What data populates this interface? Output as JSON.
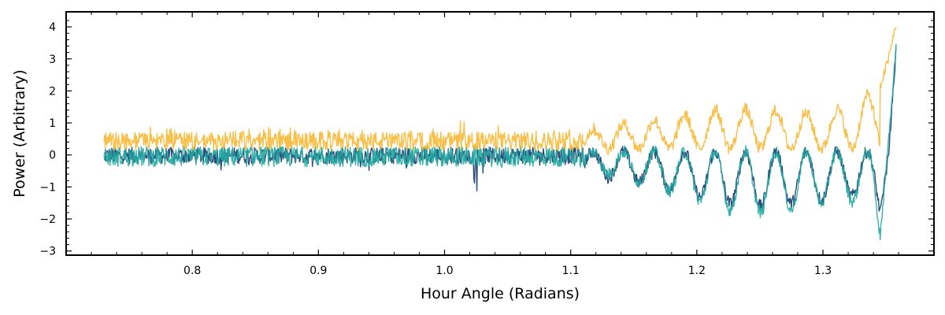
{
  "chart_data": {
    "type": "line",
    "title": "",
    "xlabel": "Hour Angle (Radians)",
    "ylabel": "Power (Arbitrary)",
    "xlim": [
      0.7,
      1.388
    ],
    "ylim": [
      -3.13,
      4.47
    ],
    "x_ticks": [
      0.8,
      0.9,
      1.0,
      1.1,
      1.2,
      1.3
    ],
    "x_tick_labels": [
      "0.8",
      "0.9",
      "1.0",
      "1.1",
      "1.2",
      "1.3"
    ],
    "y_ticks": [
      -3,
      -2,
      -1,
      0,
      1,
      2,
      3,
      4
    ],
    "y_tick_labels": [
      "−3",
      "−2",
      "−1",
      "0",
      "1",
      "2",
      "3",
      "4"
    ],
    "grid": false,
    "legend": "none",
    "x_range_of_data": [
      0.73,
      1.358
    ],
    "series": [
      {
        "color": "#f7b52c",
        "x": [
          0.73,
          0.76,
          0.8,
          0.835,
          0.88,
          0.93,
          0.98,
          1.005,
          1.01,
          1.05,
          1.1,
          1.13,
          1.16,
          1.2,
          1.22,
          1.25,
          1.28,
          1.3,
          1.32,
          1.335,
          1.345,
          1.352,
          1.358
        ],
        "values": [
          0.3,
          0.5,
          0.45,
          0.5,
          0.5,
          0.55,
          0.5,
          0.55,
          0.9,
          0.6,
          0.65,
          0.9,
          1.05,
          1.3,
          1.45,
          1.4,
          1.35,
          1.2,
          1.6,
          1.85,
          2.1,
          3.0,
          4.1
        ]
      },
      {
        "color": "#2d4b7c",
        "x": [
          0.73,
          0.76,
          0.8,
          0.835,
          0.88,
          0.93,
          0.98,
          1.0,
          1.01,
          1.013,
          1.05,
          1.1,
          1.13,
          1.16,
          1.2,
          1.22,
          1.25,
          1.28,
          1.3,
          1.32,
          1.335,
          1.345,
          1.352,
          1.358
        ],
        "values": [
          0.0,
          -0.1,
          -0.15,
          -0.35,
          -0.2,
          -0.25,
          -0.3,
          -0.3,
          -1.3,
          -1.4,
          -0.3,
          -0.3,
          -0.7,
          -0.9,
          -1.3,
          -1.5,
          -1.6,
          -1.5,
          -1.4,
          -1.3,
          -1.2,
          -1.9,
          0.0,
          3.3
        ]
      },
      {
        "color": "#22aaa1",
        "x": [
          0.73,
          0.76,
          0.8,
          0.835,
          0.88,
          0.93,
          0.98,
          1.0,
          1.05,
          1.1,
          1.13,
          1.16,
          1.2,
          1.22,
          1.25,
          1.28,
          1.3,
          1.32,
          1.335,
          1.345,
          1.352,
          1.358
        ],
        "values": [
          0.0,
          -0.05,
          -0.1,
          -0.1,
          -0.15,
          -0.1,
          -0.2,
          -0.3,
          -0.2,
          -0.3,
          -0.6,
          -0.9,
          -1.4,
          -1.7,
          -1.8,
          -1.7,
          -1.5,
          -1.4,
          -1.6,
          -2.7,
          0.5,
          3.4
        ]
      }
    ]
  }
}
